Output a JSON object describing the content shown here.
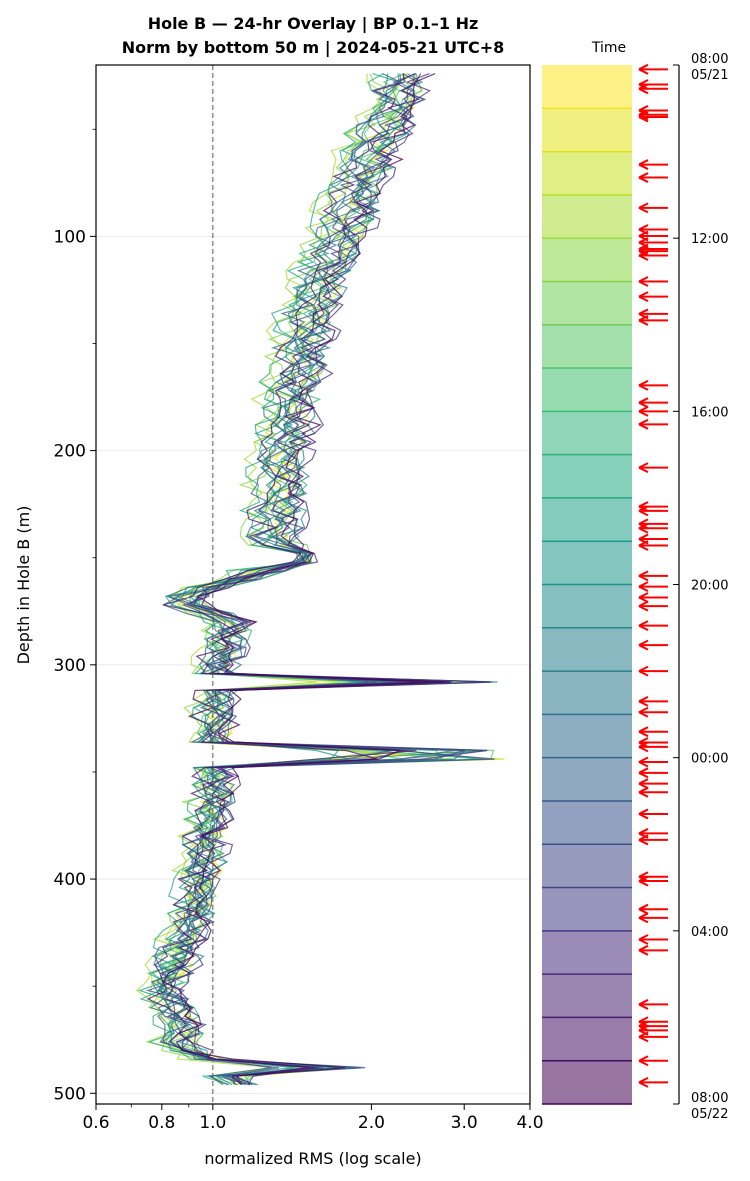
{
  "chart_data": {
    "type": "line",
    "title_line1": "Hole B — 24-hr Overlay  |  BP 0.1–1 Hz",
    "title_line2": "Norm by bottom 50 m  |  2024-05-21 UTC+8",
    "xlabel": "normalized RMS  (log scale)",
    "ylabel": "Depth in Hole B (m)",
    "x_scale": "log",
    "xlim": [
      0.6,
      4.0
    ],
    "ylim": [
      505,
      20
    ],
    "x_ticks": [
      {
        "value": 0.6,
        "label": "0.6"
      },
      {
        "value": 0.8,
        "label": "0.8"
      },
      {
        "value": 1.0,
        "label": "1.0"
      },
      {
        "value": 2.0,
        "label": "2.0"
      },
      {
        "value": 3.0,
        "label": "3.0"
      },
      {
        "value": 4.0,
        "label": "4.0"
      }
    ],
    "y_ticks": [
      100,
      200,
      300,
      400,
      500
    ],
    "y_minor_ticks": [
      50,
      150,
      250,
      350,
      450
    ],
    "reference_line_x": 1.0,
    "grid": "horizontal",
    "profile_shape": {
      "depth_top": 24,
      "depth_bottom": 497,
      "depth_step": 4,
      "anchors": [
        [
          24,
          2.3
        ],
        [
          40,
          2.2
        ],
        [
          60,
          2.0
        ],
        [
          80,
          1.85
        ],
        [
          100,
          1.75
        ],
        [
          120,
          1.6
        ],
        [
          140,
          1.5
        ],
        [
          160,
          1.45
        ],
        [
          180,
          1.4
        ],
        [
          200,
          1.35
        ],
        [
          220,
          1.32
        ],
        [
          240,
          1.3
        ],
        [
          250,
          1.4
        ],
        [
          258,
          1.2
        ],
        [
          265,
          0.95
        ],
        [
          270,
          0.85
        ],
        [
          280,
          1.08
        ],
        [
          290,
          1.05
        ],
        [
          300,
          1.02
        ],
        [
          310,
          1.02
        ],
        [
          320,
          1.0
        ],
        [
          340,
          1.0
        ],
        [
          360,
          1.0
        ],
        [
          380,
          0.97
        ],
        [
          400,
          0.95
        ],
        [
          420,
          0.9
        ],
        [
          440,
          0.85
        ],
        [
          450,
          0.8
        ],
        [
          470,
          0.88
        ],
        [
          478,
          0.85
        ],
        [
          485,
          1.0
        ],
        [
          490,
          1.05
        ],
        [
          497,
          1.15
        ]
      ],
      "spikes": [
        {
          "depth": 250,
          "max_value": 1.55
        },
        {
          "depth": 308,
          "max_value": 3.5
        },
        {
          "depth": 342,
          "max_value": 3.6
        },
        {
          "depth": 487,
          "max_value": 1.95
        }
      ]
    },
    "series_count": 24,
    "colorbar": {
      "label": "Time",
      "colormap": "viridis",
      "alpha": 0.55,
      "n_bands": 24,
      "colors": [
        "#fde725",
        "#dde318",
        "#bade28",
        "#95d840",
        "#75d054",
        "#56c667",
        "#3dbc74",
        "#29af7f",
        "#20a386",
        "#1f968b",
        "#238a8d",
        "#287d8e",
        "#2d718e",
        "#33638d",
        "#39558c",
        "#404688",
        "#453781",
        "#482677",
        "#481467",
        "#440154"
      ],
      "direction": "top = 08:00 05/21 (yellow), bottom = 08:00 05/22 (purple)",
      "ticks": [
        {
          "label": "08:00",
          "sublabel": "05/21",
          "hour": 0
        },
        {
          "label": "12:00",
          "sublabel": "",
          "hour": 4
        },
        {
          "label": "16:00",
          "sublabel": "",
          "hour": 8
        },
        {
          "label": "20:00",
          "sublabel": "",
          "hour": 12
        },
        {
          "label": "00:00",
          "sublabel": "",
          "hour": 16
        },
        {
          "label": "04:00",
          "sublabel": "",
          "hour": 20
        },
        {
          "label": "08:00",
          "sublabel": "05/22",
          "hour": 24
        }
      ]
    },
    "event_markers": {
      "color": "#ff0000",
      "hours": [
        0.1,
        0.45,
        0.55,
        1.05,
        1.15,
        1.2,
        2.3,
        2.6,
        3.3,
        3.8,
        3.95,
        4.1,
        4.25,
        4.3,
        4.4,
        5.0,
        5.35,
        5.75,
        5.9,
        7.4,
        7.8,
        8.0,
        8.3,
        9.3,
        10.2,
        10.3,
        10.6,
        10.7,
        10.95,
        11.1,
        11.8,
        12.05,
        12.3,
        12.5,
        12.95,
        13.4,
        14.0,
        14.7,
        14.95,
        15.4,
        15.65,
        15.75,
        16.1,
        16.35,
        16.6,
        16.8,
        17.3,
        17.75,
        17.9,
        18.75,
        18.85,
        19.5,
        19.7,
        20.2,
        20.45,
        21.7,
        22.1,
        22.2,
        22.3,
        22.45,
        23.0,
        23.5
      ]
    }
  }
}
